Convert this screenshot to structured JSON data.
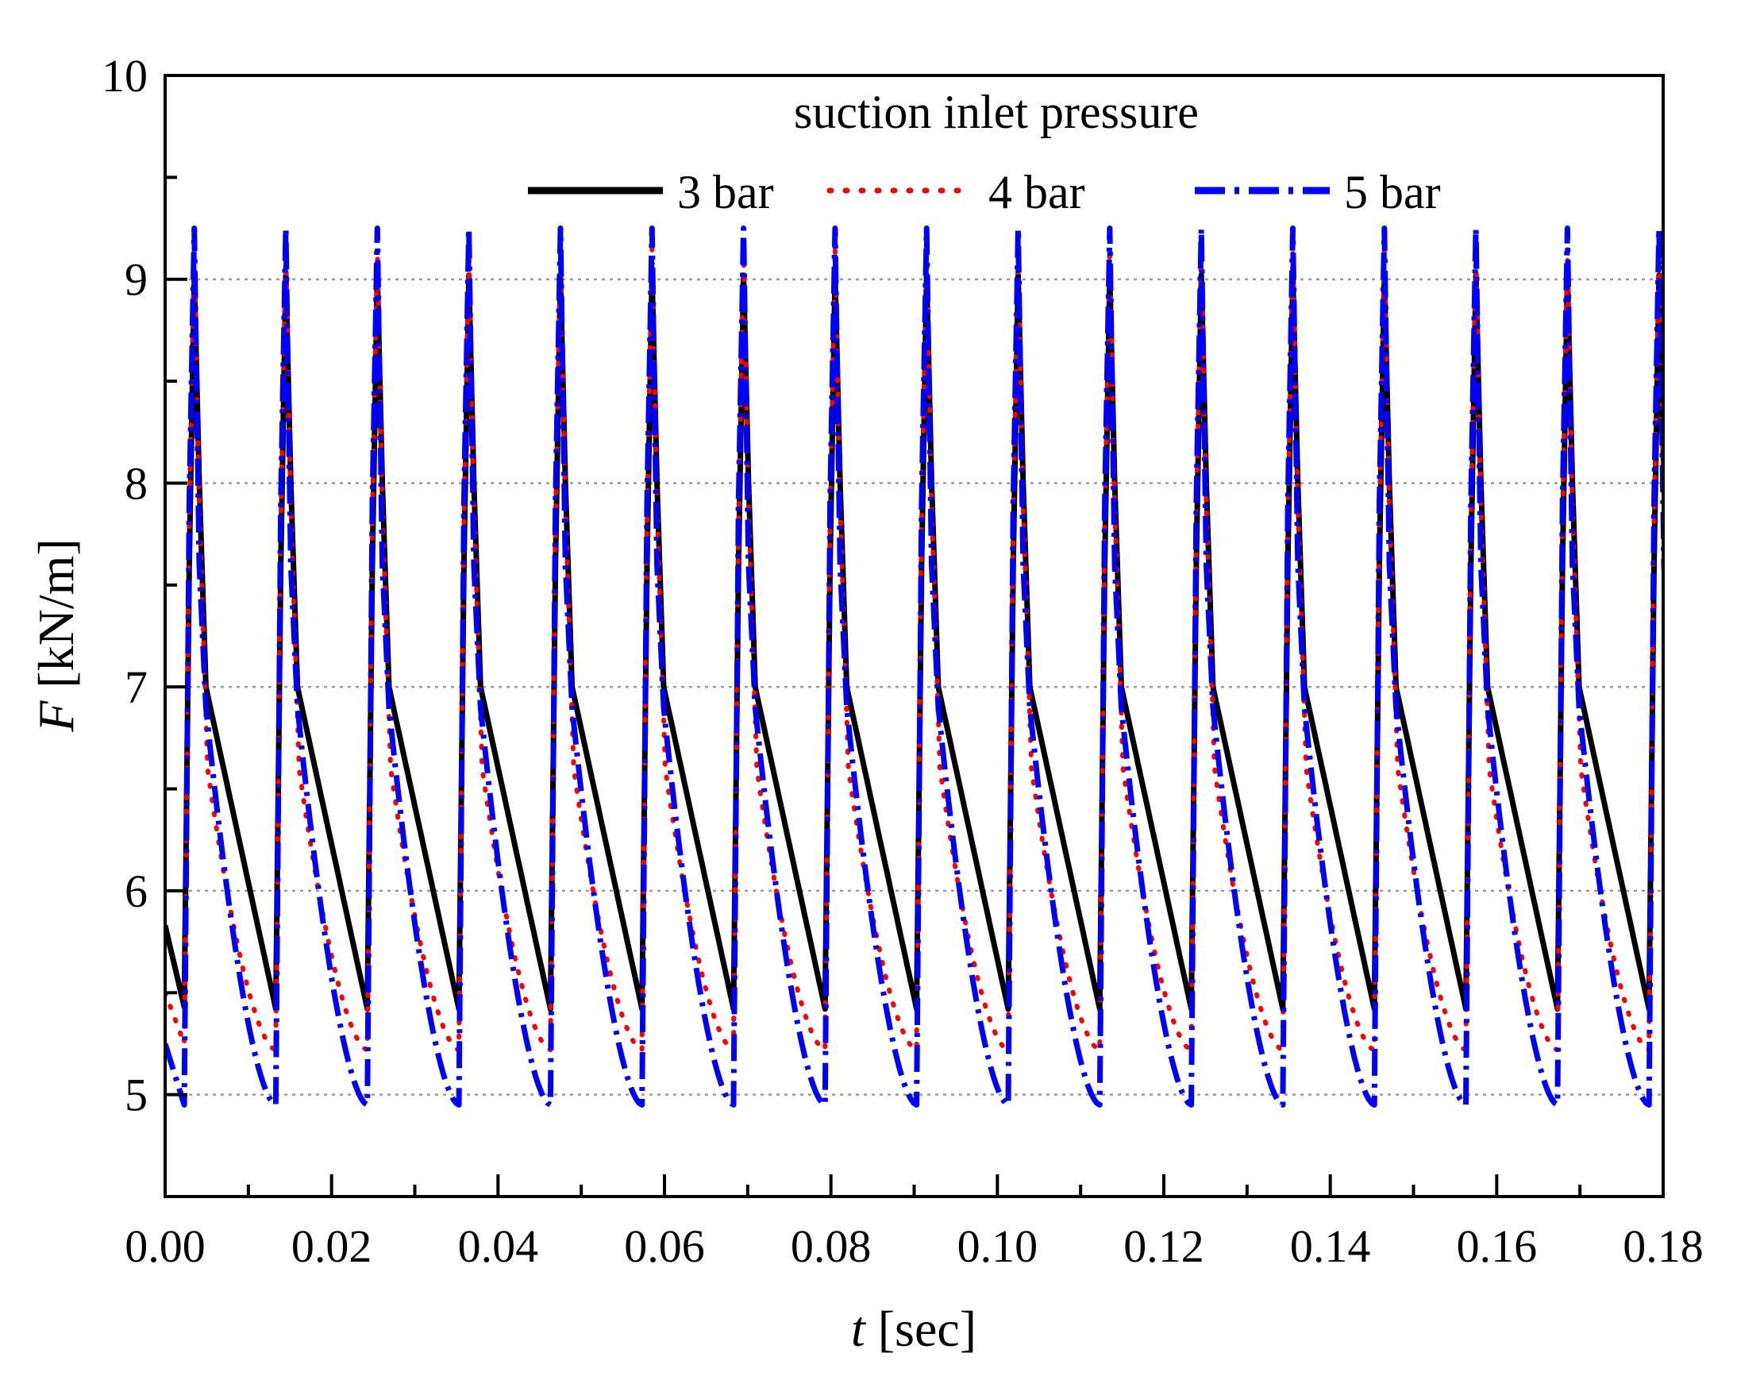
{
  "chart_data": {
    "type": "line",
    "title": "",
    "xlabel_var": "t",
    "xlabel_unit": " [sec]",
    "ylabel_var": "F",
    "ylabel_unit": " [kN/m]",
    "xlim": [
      0,
      0.18
    ],
    "ylim": [
      4.5,
      10
    ],
    "x_ticks": [
      "0.00",
      "0.02",
      "0.04",
      "0.06",
      "0.08",
      "0.10",
      "0.12",
      "0.14",
      "0.16",
      "0.18"
    ],
    "y_ticks": [
      "5",
      "6",
      "7",
      "8",
      "9",
      "10"
    ],
    "grid": "horizontal dotted",
    "legend_title": "suction inlet pressure",
    "legend_position": "top",
    "period": 0.011,
    "start_offset": 0.0023,
    "series": [
      {
        "name": "3 bar",
        "color": "#000000",
        "style": "solid",
        "start_value": 5.83,
        "rise": [
          [
            0.0,
            5.43
          ],
          [
            0.0006,
            7.6
          ],
          [
            0.0012,
            9.02
          ],
          [
            0.0018,
            8.0
          ],
          [
            0.0026,
            7.0
          ]
        ],
        "trough": 5.42,
        "decay_shape": "linear"
      },
      {
        "name": "4 bar",
        "color": "#ff0000",
        "style": "dotted",
        "start_value": 5.5,
        "rise": [
          [
            0.0,
            5.25
          ],
          [
            0.0006,
            7.8
          ],
          [
            0.0012,
            9.15
          ],
          [
            0.0018,
            7.9
          ],
          [
            0.0028,
            6.6
          ]
        ],
        "trough": 5.22,
        "decay_shape": "curved"
      },
      {
        "name": "5 bar",
        "color": "#0000ff",
        "style": "dashdot",
        "start_value": 5.25,
        "rise": [
          [
            0.0,
            4.95
          ],
          [
            0.0006,
            7.9
          ],
          [
            0.0012,
            9.25
          ],
          [
            0.0018,
            7.6
          ],
          [
            0.0026,
            6.9
          ]
        ],
        "trough": 4.95,
        "decay_shape": "curved"
      }
    ]
  }
}
